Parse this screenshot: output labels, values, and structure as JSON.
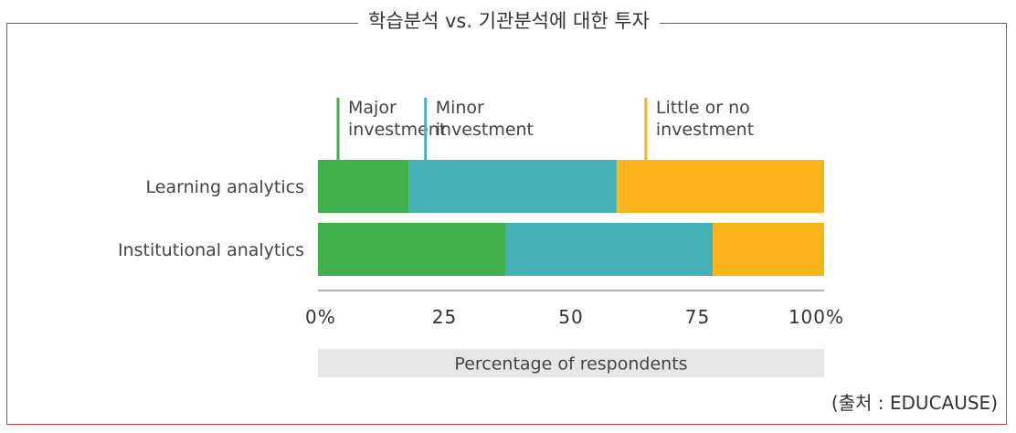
{
  "title": "학습분석 vs. 기관분석에 대한 투자",
  "source": "(출처 : EDUCAUSE)",
  "colors": {
    "frame": "#c83a3f",
    "major": "#40ae4a",
    "minor": "#45b0b5",
    "little": "#fbb419",
    "xlabel_bg": "#e6e6e6"
  },
  "chart_data": {
    "type": "bar",
    "orientation": "horizontal",
    "stacked": true,
    "xlabel": "Percentage of respondents",
    "xlim": [
      0,
      100
    ],
    "xticks": [
      0,
      25,
      50,
      75,
      100
    ],
    "xtick_labels": [
      "0%",
      "25",
      "50",
      "75",
      "100%"
    ],
    "categories": [
      "Learning analytics",
      "Institutional analytics"
    ],
    "series": [
      {
        "name": "Major investment",
        "name_lines": [
          "Major",
          "investment"
        ],
        "color": "#40ae4a",
        "values": [
          18,
          37
        ]
      },
      {
        "name": "Minor investment",
        "name_lines": [
          "Minor",
          "investment"
        ],
        "color": "#45b0b5",
        "values": [
          41,
          41
        ]
      },
      {
        "name": "Little or no investment",
        "name_lines": [
          "Little or no",
          "investment"
        ],
        "color": "#fbb419",
        "values": [
          41,
          22
        ]
      }
    ],
    "legend": "top, inline labels above bars",
    "grid": false
  }
}
